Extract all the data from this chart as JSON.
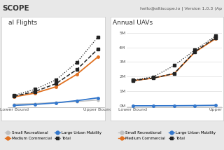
{
  "header_bg": "#f0f0f0",
  "header_text_left": "SCOPE",
  "header_text_right": "hello@altiscope.io | Version 1.0.3 (Ap",
  "chart_bg": "#ffffff",
  "panel_bg": "#e8e8e8",
  "chart1_title": "al Flights",
  "chart1_xlabel_left": "Lower Bound",
  "chart1_xlabel_right": "Upper Bound",
  "chart1_x": [
    0,
    1,
    2,
    3,
    4
  ],
  "chart1_small_rec": [
    0.05,
    0.07,
    0.1,
    0.13,
    0.18
  ],
  "chart1_med_comm": [
    0.28,
    0.4,
    0.6,
    1.0,
    1.55
  ],
  "chart1_large_urban": [
    0.01,
    0.04,
    0.09,
    0.16,
    0.25
  ],
  "chart1_total_lower": [
    0.3,
    0.45,
    0.7,
    1.15,
    1.8
  ],
  "chart1_total_upper": [
    0.33,
    0.52,
    0.82,
    1.38,
    2.18
  ],
  "chart2_title": "Annual UAVs",
  "chart2_xlabel_left": "Lower Bound",
  "chart2_xlabel_right": "Upper",
  "chart2_x": [
    0,
    1,
    2,
    3,
    4
  ],
  "chart2_yticks": [
    "0M",
    "1M",
    "2M",
    "3M",
    "4M",
    "5M"
  ],
  "chart2_ytick_vals": [
    0,
    1000000,
    2000000,
    3000000,
    4000000,
    5000000
  ],
  "chart2_small_rec": [
    0,
    2000,
    5000,
    12000,
    25000
  ],
  "chart2_med_comm": [
    1720000,
    1900000,
    2200000,
    3680000,
    4600000
  ],
  "chart2_large_urban": [
    0,
    1000,
    5000,
    15000,
    30000
  ],
  "chart2_total_lower": [
    1720000,
    1905000,
    2210000,
    3710000,
    4660000
  ],
  "chart2_total_upper": [
    1760000,
    1990000,
    2760000,
    3820000,
    4780000
  ],
  "color_small_rec": "#c0c0c0",
  "color_med_comm": "#e07020",
  "color_large_urban": "#3377cc",
  "color_total": "#222222",
  "legend_labels": [
    "Small Recreational",
    "Medium Commercial",
    "Large Urban Mobility",
    "Total"
  ]
}
